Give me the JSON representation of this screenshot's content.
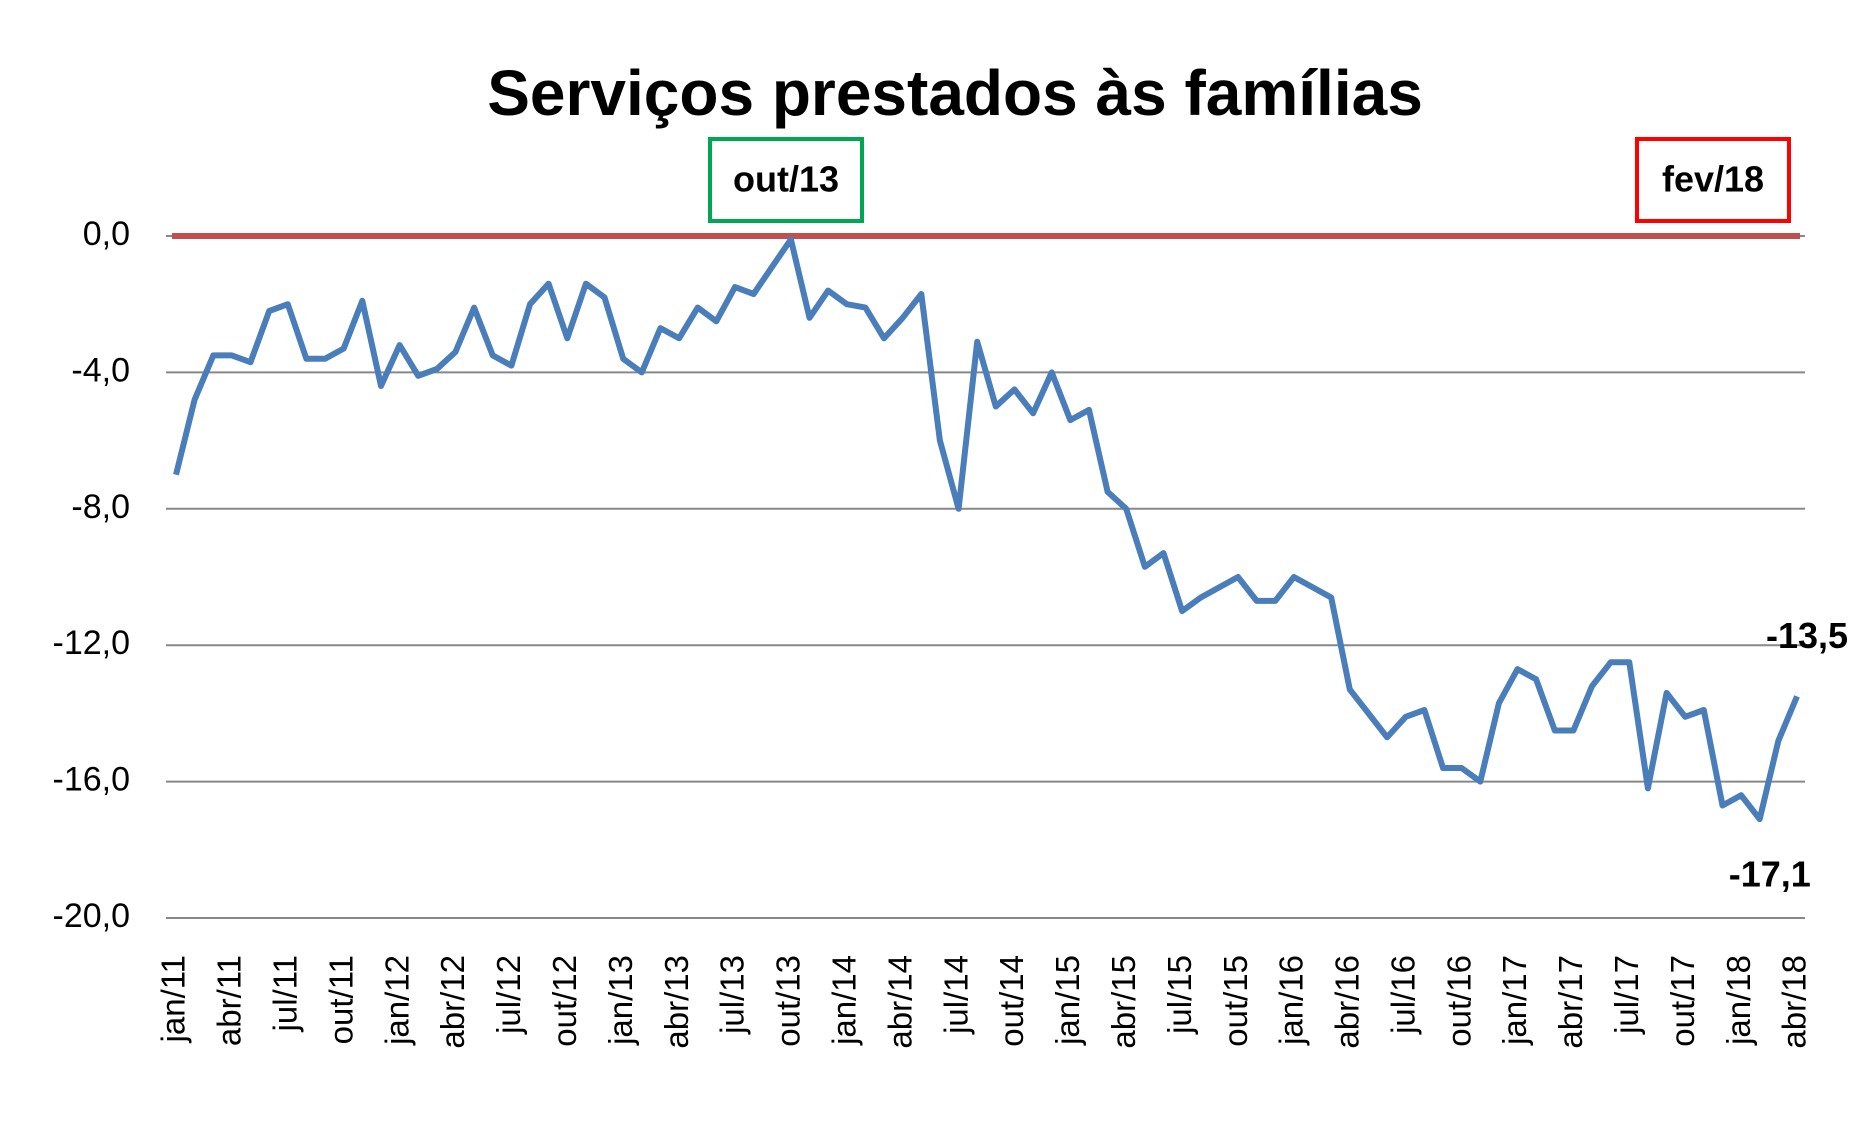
{
  "chart_data": {
    "type": "line",
    "title": "Serviços prestados às famílias",
    "categories": [
      "jan/11",
      null,
      null,
      "abr/11",
      null,
      null,
      "jul/11",
      null,
      null,
      "out/11",
      null,
      null,
      "jan/12",
      null,
      null,
      "abr/12",
      null,
      null,
      "jul/12",
      null,
      null,
      "out/12",
      null,
      null,
      "jan/13",
      null,
      null,
      "abr/13",
      null,
      null,
      "jul/13",
      null,
      null,
      "out/13",
      null,
      null,
      "jan/14",
      null,
      null,
      "abr/14",
      null,
      null,
      "jul/14",
      null,
      null,
      "out/14",
      null,
      null,
      "jan/15",
      null,
      null,
      "abr/15",
      null,
      null,
      "jul/15",
      null,
      null,
      "out/15",
      null,
      null,
      "jan/16",
      null,
      null,
      "abr/16",
      null,
      null,
      "jul/16",
      null,
      null,
      "out/16",
      null,
      null,
      "jan/17",
      null,
      null,
      "abr/17",
      null,
      null,
      "jul/17",
      null,
      null,
      "out/17",
      null,
      null,
      "jan/18",
      null,
      null,
      "abr/18"
    ],
    "values": [
      -7.0,
      -4.8,
      -3.5,
      -3.5,
      -3.7,
      -2.2,
      -2.0,
      -3.6,
      -3.6,
      -3.3,
      -1.9,
      -4.4,
      -3.2,
      -4.1,
      -3.9,
      -3.4,
      -2.1,
      -3.5,
      -3.8,
      -2.0,
      -1.4,
      -3.0,
      -1.4,
      -1.8,
      -3.6,
      -4.0,
      -2.7,
      -3.0,
      -2.1,
      -2.5,
      -1.5,
      -1.7,
      -0.9,
      -0.1,
      -2.4,
      -1.6,
      -2.0,
      -2.1,
      -3.0,
      -2.4,
      -1.7,
      -6.0,
      -8.0,
      -3.1,
      -5.0,
      -4.5,
      -5.2,
      -4.0,
      -5.4,
      -5.1,
      -7.5,
      -8.0,
      -9.7,
      -9.3,
      -11.0,
      -10.6,
      -10.3,
      -10.0,
      -10.7,
      -10.7,
      -10.0,
      -10.3,
      -10.6,
      -13.3,
      -14.0,
      -14.7,
      -14.1,
      -13.9,
      -15.6,
      -15.6,
      -16.0,
      -13.7,
      -12.7,
      -13.0,
      -14.5,
      -14.5,
      -13.2,
      -12.5,
      -12.5,
      -16.2,
      -13.4,
      -14.1,
      -13.9,
      -16.7,
      -16.4,
      -17.1,
      -14.8,
      -13.5
    ],
    "value_labels": [
      null,
      null,
      null,
      null,
      null,
      null,
      null,
      null,
      null,
      null,
      null,
      null,
      null,
      null,
      null,
      null,
      null,
      null,
      null,
      null,
      null,
      null,
      null,
      null,
      null,
      null,
      null,
      null,
      null,
      null,
      null,
      null,
      null,
      null,
      null,
      null,
      null,
      null,
      null,
      null,
      null,
      null,
      null,
      null,
      null,
      null,
      null,
      null,
      null,
      null,
      null,
      null,
      null,
      null,
      null,
      null,
      null,
      null,
      null,
      null,
      null,
      null,
      null,
      null,
      null,
      null,
      null,
      null,
      null,
      null,
      null,
      null,
      null,
      null,
      null,
      null,
      null,
      null,
      null,
      null,
      null,
      null,
      null,
      null,
      null,
      "-17,1",
      null,
      "-13,5"
    ],
    "color": "#4a7ebb",
    "value_label_color": "#ff0000",
    "ylim": [
      -20,
      0
    ],
    "yticks": [
      {
        "value": 0,
        "label": "0,0"
      },
      {
        "value": -4,
        "label": "-4,0"
      },
      {
        "value": -8,
        "label": "-8,0"
      },
      {
        "value": -12,
        "label": "-12,0"
      },
      {
        "value": -16,
        "label": "-16,0"
      },
      {
        "value": -20,
        "label": "-20,0"
      }
    ],
    "grid": true,
    "reference_line": {
      "value": 0,
      "color": "#c0504d"
    },
    "annotations": [
      {
        "text": "out/13",
        "color": "#00a651"
      },
      {
        "text": "fev/18",
        "color": "#ff0000"
      }
    ]
  }
}
